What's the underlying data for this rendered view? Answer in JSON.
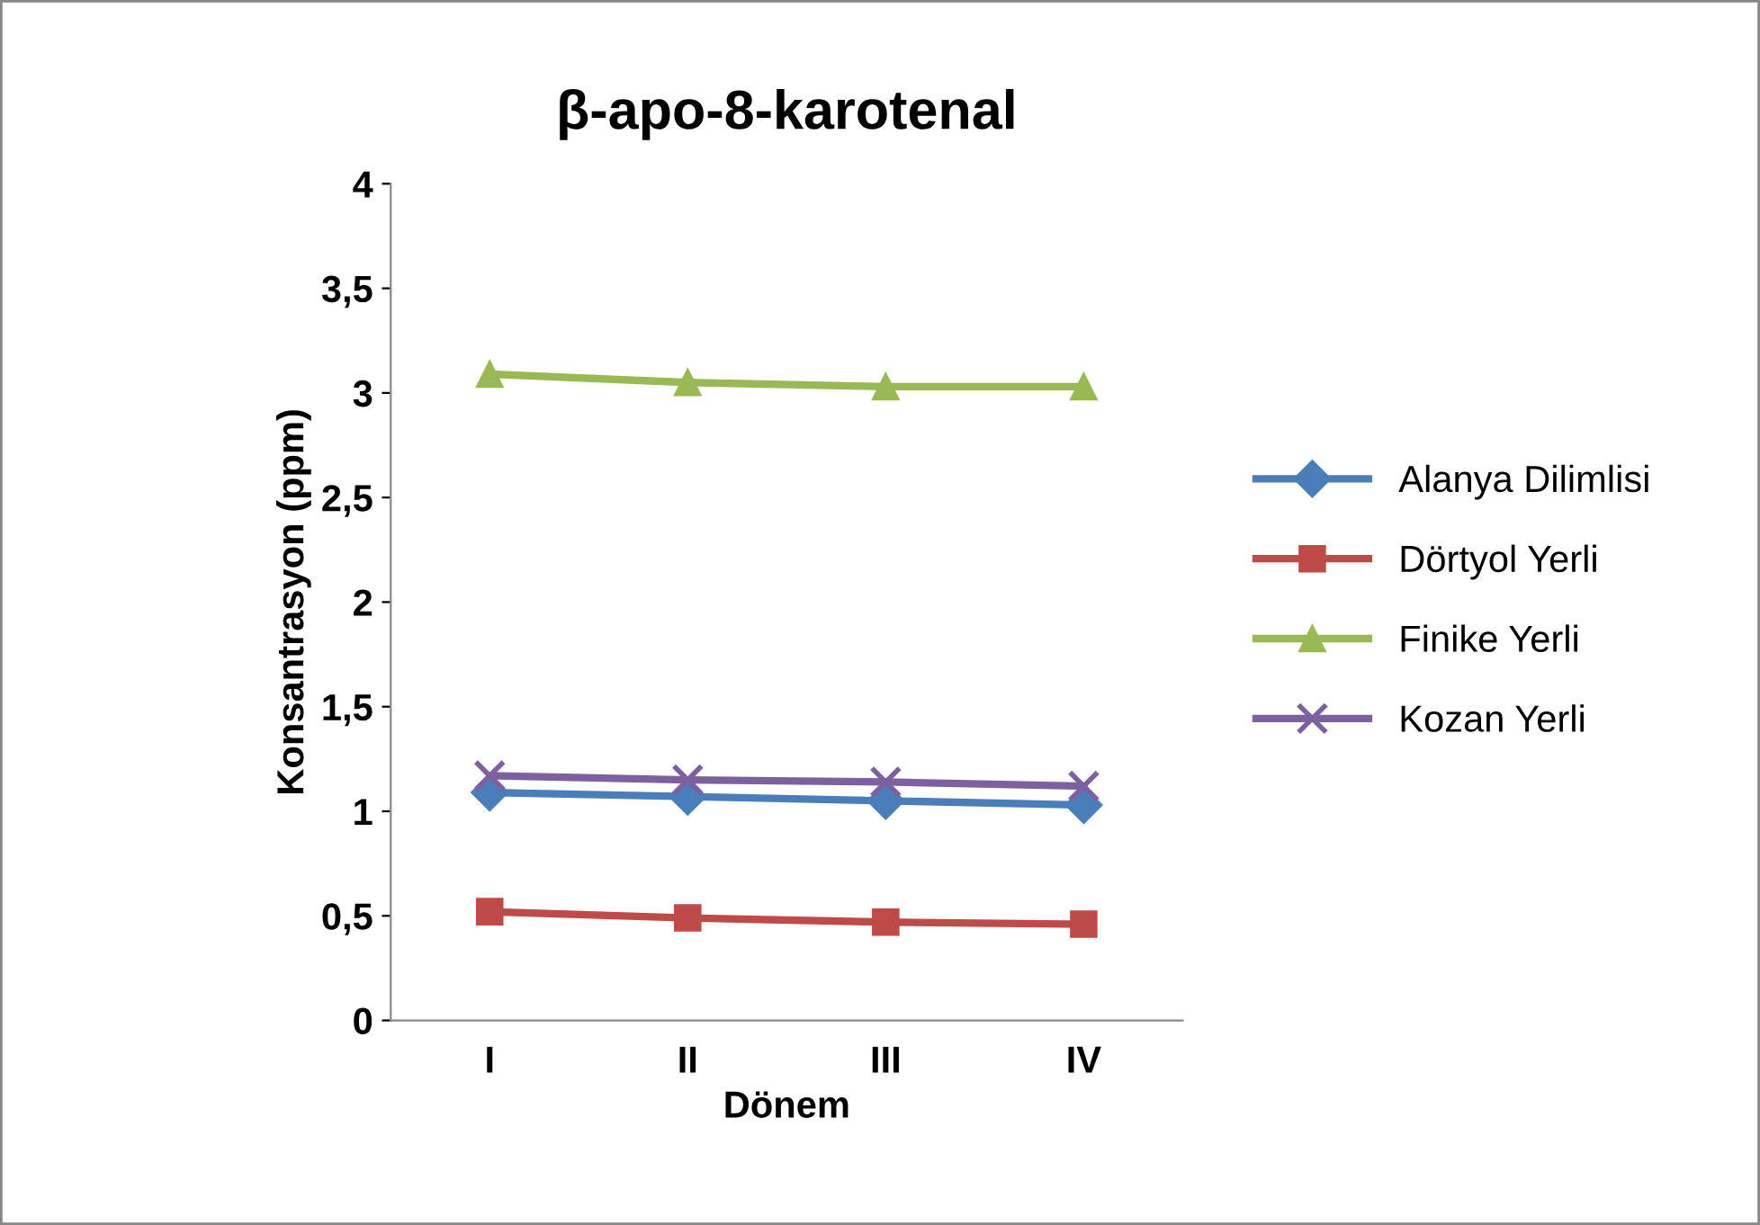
{
  "chart_data": {
    "type": "line",
    "title": "β-apo-8-karotenal",
    "xlabel": "Dönem",
    "ylabel": "Konsantrasyon (ppm)",
    "categories": [
      "I",
      "II",
      "III",
      "IV"
    ],
    "series": [
      {
        "name": "Alanya Dilimlisi",
        "color": "#4a7ebb",
        "marker": "diamond",
        "values": [
          1.09,
          1.07,
          1.05,
          1.03
        ]
      },
      {
        "name": "Dörtyol Yerli",
        "color": "#be4b48",
        "marker": "square",
        "values": [
          0.52,
          0.49,
          0.47,
          0.46
        ]
      },
      {
        "name": "Finike Yerli",
        "color": "#98b954",
        "marker": "triangle",
        "values": [
          3.09,
          3.05,
          3.03,
          3.03
        ]
      },
      {
        "name": "Kozan Yerli",
        "color": "#7d60a0",
        "marker": "cross",
        "values": [
          1.17,
          1.15,
          1.14,
          1.12
        ]
      }
    ],
    "ylim": [
      0,
      4
    ],
    "yticks": [
      0,
      {
        "value": 0.5,
        "label": "0,5"
      },
      1,
      {
        "value": 1.5,
        "label": "1,5"
      },
      2,
      {
        "value": 2.5,
        "label": "2,5"
      },
      3,
      {
        "value": 3.5,
        "label": "3,5"
      },
      4
    ],
    "grid": false,
    "legend": "right"
  }
}
